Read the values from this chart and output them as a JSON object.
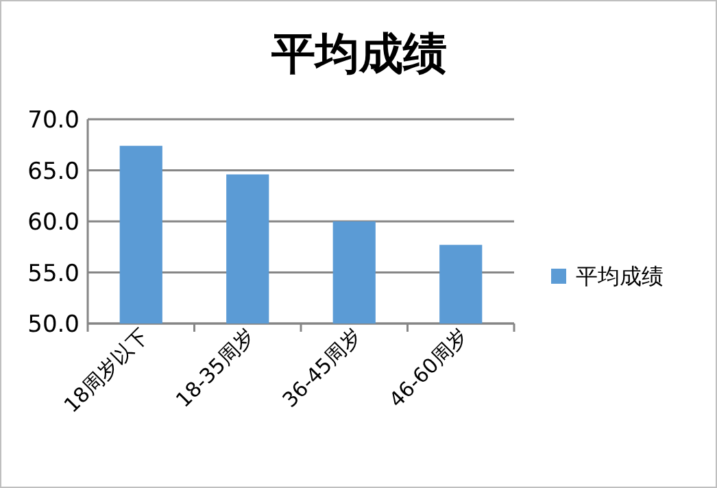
{
  "chart_data": {
    "type": "bar",
    "title": "平均成绩",
    "categories": [
      "18周岁以下",
      "18-35周岁",
      "36-45周岁",
      "46-60周岁"
    ],
    "series": [
      {
        "name": "平均成绩",
        "color": "#5b9bd5",
        "values": [
          67.4,
          64.6,
          60.0,
          57.7
        ]
      }
    ],
    "ylim": [
      50,
      70
    ],
    "yticks": [
      {
        "value": 50,
        "label": "50.0"
      },
      {
        "value": 55,
        "label": "55.0"
      },
      {
        "value": 60,
        "label": "60.0"
      },
      {
        "value": 65,
        "label": "65.0"
      },
      {
        "value": 70,
        "label": "70.0"
      }
    ],
    "grid": "y",
    "legend": "right"
  }
}
